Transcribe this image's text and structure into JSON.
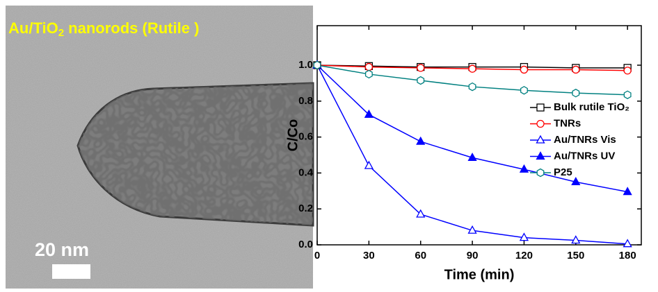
{
  "image_panel": {
    "title_parts": [
      "Au/TiO",
      "2",
      " nanorods (Rutile )"
    ],
    "scale_label": "20 nm"
  },
  "chart_data": {
    "type": "line",
    "x_label": "Time (min)",
    "y_label": "C/Co",
    "x": [
      0,
      30,
      60,
      90,
      120,
      150,
      180
    ],
    "xlim": [
      0,
      188
    ],
    "ylim": [
      0,
      1.22
    ],
    "xticks": [
      0,
      30,
      60,
      90,
      120,
      150,
      180
    ],
    "yticks": [
      {
        "value": 0,
        "label": "0.0"
      },
      {
        "value": 0.2,
        "label": "0.2"
      },
      {
        "value": 0.4,
        "label": "0.4"
      },
      {
        "value": 0.6,
        "label": "0.6"
      },
      {
        "value": 0.8,
        "label": "0.8"
      },
      {
        "value": 1.0,
        "label": "1.0"
      }
    ],
    "series": [
      {
        "name": "Bulk rutile TiO₂",
        "color": "#000000",
        "marker": "square",
        "filled": false,
        "values": [
          1.0,
          0.995,
          0.99,
          0.99,
          0.99,
          0.985,
          0.985
        ]
      },
      {
        "name": "TNRs",
        "color": "#ff0000",
        "marker": "circle",
        "filled": false,
        "values": [
          1.0,
          0.99,
          0.985,
          0.98,
          0.975,
          0.975,
          0.97
        ]
      },
      {
        "name": "Au/TNRs Vis",
        "color": "#0000ff",
        "marker": "triangle",
        "filled": false,
        "values": [
          1.0,
          0.44,
          0.17,
          0.08,
          0.04,
          0.025,
          0.005
        ]
      },
      {
        "name": "Au/TNRs UV",
        "color": "#0000ff",
        "marker": "triangle",
        "filled": true,
        "values": [
          1.0,
          0.725,
          0.575,
          0.485,
          0.42,
          0.35,
          0.295
        ]
      },
      {
        "name": "P25",
        "color": "#008080",
        "marker": "hexagon",
        "filled": false,
        "values": [
          1.0,
          0.95,
          0.915,
          0.88,
          0.86,
          0.845,
          0.835
        ]
      }
    ]
  }
}
